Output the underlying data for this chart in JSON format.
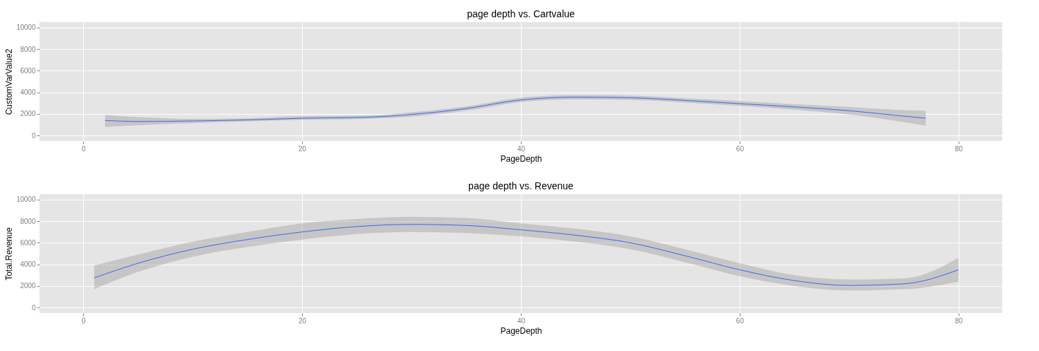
{
  "chart_data": [
    {
      "type": "line",
      "title": "page depth vs. Cartvalue",
      "xlabel": "PageDepth",
      "ylabel": "CustomVarValue2",
      "xlim": [
        -4,
        84
      ],
      "ylim": [
        -500,
        10500
      ],
      "xticks": [
        0,
        20,
        40,
        60,
        80
      ],
      "yticks": [
        0,
        2000,
        4000,
        6000,
        8000,
        10000
      ],
      "grid": true,
      "series": [
        {
          "color": "#3366ff",
          "x": [
            2,
            5,
            10,
            15,
            20,
            26,
            30,
            35,
            40,
            45,
            50,
            55,
            60,
            65,
            70,
            74,
            77
          ],
          "values": [
            1400,
            1300,
            1350,
            1450,
            1600,
            1700,
            1950,
            2500,
            3300,
            3550,
            3500,
            3250,
            2950,
            2650,
            2300,
            1900,
            1600
          ],
          "lower": [
            800,
            950,
            1150,
            1300,
            1450,
            1550,
            1750,
            2300,
            3100,
            3350,
            3300,
            3050,
            2750,
            2400,
            1950,
            1400,
            900
          ],
          "upper": [
            1900,
            1700,
            1550,
            1600,
            1800,
            1850,
            2150,
            2700,
            3500,
            3750,
            3700,
            3450,
            3200,
            2900,
            2650,
            2400,
            2300
          ]
        }
      ]
    },
    {
      "type": "line",
      "title": "page depth vs. Revenue",
      "xlabel": "PageDepth",
      "ylabel": "Total.Revenue",
      "xlim": [
        -4,
        84
      ],
      "ylim": [
        -500,
        10500
      ],
      "xticks": [
        0,
        20,
        40,
        60,
        80
      ],
      "yticks": [
        0,
        2000,
        4000,
        6000,
        8000,
        10000
      ],
      "grid": true,
      "series": [
        {
          "color": "#3366ff",
          "x": [
            1,
            5,
            10,
            15,
            20,
            25,
            30,
            35,
            40,
            45,
            50,
            55,
            60,
            65,
            70,
            75,
            80
          ],
          "values": [
            2750,
            4100,
            5400,
            6300,
            7000,
            7500,
            7700,
            7600,
            7200,
            6700,
            6000,
            4800,
            3500,
            2500,
            2050,
            2200,
            3500
          ],
          "lower": [
            1700,
            3300,
            4700,
            5600,
            6300,
            6800,
            7000,
            6900,
            6600,
            6100,
            5400,
            4200,
            2900,
            2000,
            1600,
            1700,
            2400
          ],
          "upper": [
            3900,
            4900,
            6100,
            7000,
            7800,
            8200,
            8400,
            8300,
            7800,
            7300,
            6600,
            5400,
            4100,
            3000,
            2600,
            2700,
            4600
          ]
        }
      ]
    }
  ]
}
